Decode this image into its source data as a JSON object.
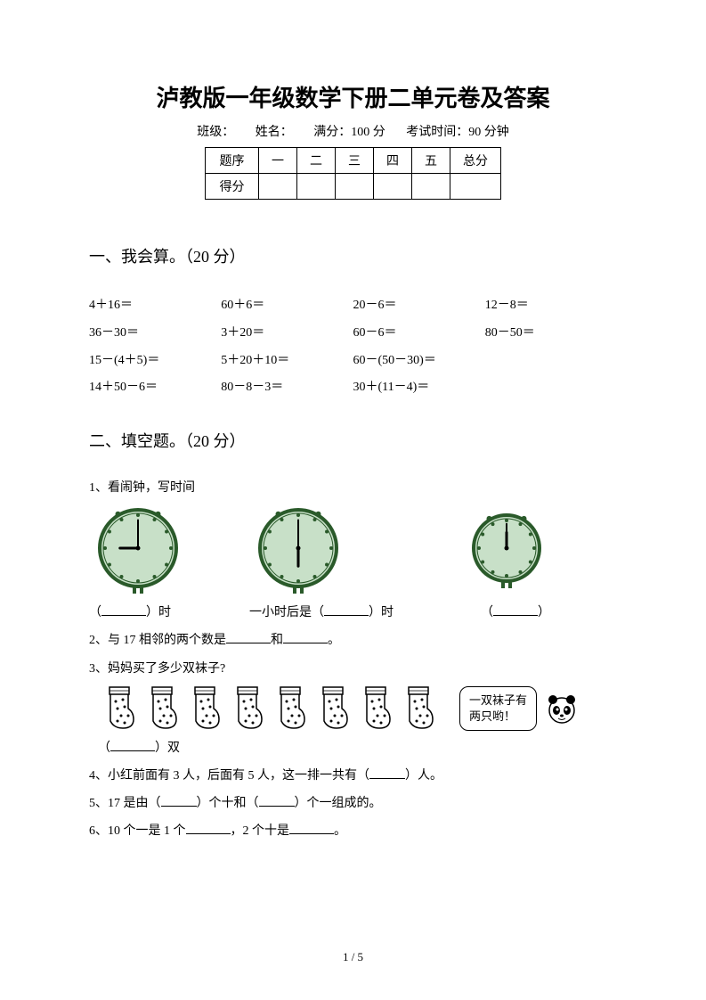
{
  "title": "泸教版一年级数学下册二单元卷及答案",
  "meta": {
    "class_label": "班级：",
    "name_label": "姓名：",
    "full_label": "满分：100 分",
    "time_label": "考试时间：90 分钟"
  },
  "score_table": {
    "row1": [
      "题序",
      "一",
      "二",
      "三",
      "四",
      "五",
      "总分"
    ],
    "row2_header": "得分"
  },
  "section1": {
    "heading": "一、我会算。（20 分）",
    "rows": [
      [
        "4＋16＝",
        "60＋6＝",
        "20－6＝",
        "12－8＝"
      ],
      [
        "36－30＝",
        "3＋20＝",
        "60－6＝",
        "80－50＝"
      ],
      [
        "15－(4＋5)＝",
        "5＋20＋10＝",
        "60－(50－30)＝",
        ""
      ],
      [
        "14＋50－6＝",
        "80－8－3＝",
        "30＋(11－4)＝",
        ""
      ]
    ]
  },
  "section2": {
    "heading": "二、填空题。（20 分）",
    "q1_label": "1、看闹钟，写时间",
    "q1_line_a": "（",
    "q1_line_b": "）时",
    "q1_mid": "一小时后是（",
    "q1_mid2": "）时",
    "q1_right": "（",
    "q1_right2": "）",
    "q2": "2、与 17 相邻的两个数是",
    "q2_mid": "和",
    "q2_end": "。",
    "q3": "3、妈妈买了多少双袜子?",
    "q3_bubble_l1": "一双袜子有",
    "q3_bubble_l2": "两只哟！",
    "q3_answer_a": "（",
    "q3_answer_b": "）双",
    "q4": "4、小红前面有 3 人，后面有 5 人，这一排一共有（",
    "q4_b": "）人。",
    "q5_a": "5、17 是由（",
    "q5_b": "）个十和（",
    "q5_c": "）个一组成的。",
    "q6_a": "6、10 个一是 1 个",
    "q6_b": "，2 个十是",
    "q6_c": "。"
  },
  "clocks": [
    {
      "hour": 9,
      "minute": 0
    },
    {
      "hour": 6,
      "minute": 0
    },
    {
      "hour": 12,
      "minute": 0
    }
  ],
  "sock_count": 8,
  "page_num": "1 / 5",
  "colors": {
    "clock_face": "#c8e0c8",
    "clock_ring": "#2a5a2a",
    "text": "#000000"
  }
}
